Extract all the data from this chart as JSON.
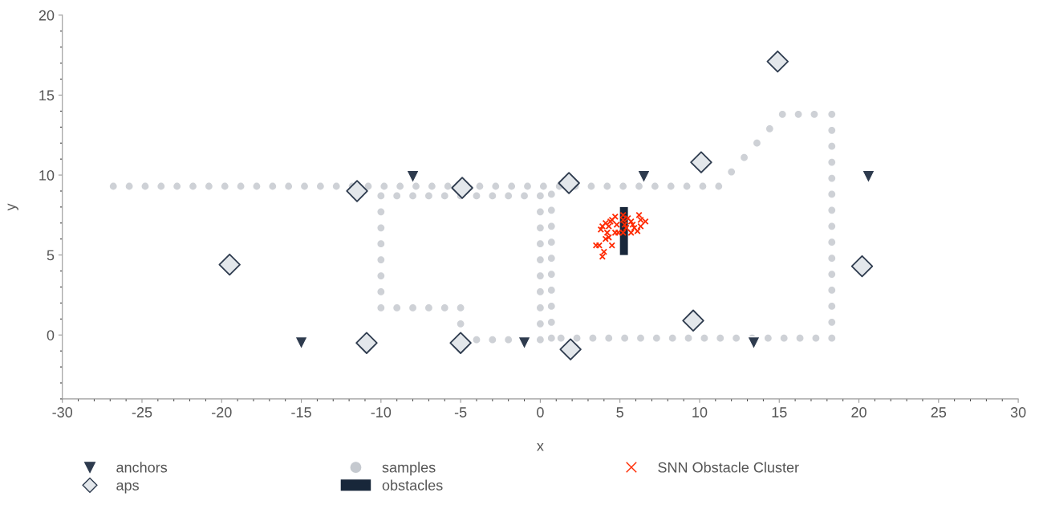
{
  "chart_data": {
    "type": "scatter",
    "xlabel": "x",
    "ylabel": "y",
    "xlim": [
      -30,
      30
    ],
    "xticks": [
      -30,
      -25,
      -20,
      -15,
      -10,
      -5,
      0,
      5,
      10,
      15,
      20,
      25,
      30
    ],
    "ylim": [
      -4,
      20
    ],
    "yticks": [
      0,
      5,
      10,
      15,
      20
    ],
    "grid": false,
    "legend": "bottom",
    "series": [
      {
        "name": "anchors",
        "marker": "triangle",
        "color": "#2e3b4e",
        "x": [
          -8.0,
          6.5,
          20.6,
          -15.0,
          -1.0,
          13.4
        ],
        "values": [
          9.9,
          9.9,
          9.9,
          -0.5,
          -0.5,
          -0.5
        ]
      },
      {
        "name": "aps",
        "marker": "diamond",
        "color": "#e3e7eb",
        "x": [
          -19.5,
          -11.5,
          -10.9,
          -4.9,
          -5.0,
          1.8,
          1.9,
          10.1,
          9.6,
          14.9,
          20.2
        ],
        "values": [
          4.4,
          9.0,
          -0.5,
          9.2,
          -0.5,
          9.5,
          -0.9,
          10.8,
          0.9,
          17.1,
          4.3
        ]
      },
      {
        "name": "samples",
        "marker": "circle",
        "color": "#c5c9cf",
        "x": [
          -26.8,
          -25.8,
          -24.8,
          -23.8,
          -22.8,
          -21.8,
          -20.8,
          -19.8,
          -18.8,
          -17.8,
          -16.8,
          -15.8,
          -14.8,
          -13.8,
          -12.8,
          -11.8,
          -10.8,
          -9.8,
          -8.8,
          -7.8,
          -6.8,
          -5.8,
          -3.8,
          -2.8,
          -1.8,
          -0.8,
          0.2,
          1.2,
          2.2,
          3.2,
          4.2,
          5.2,
          6.2,
          7.2,
          8.2,
          9.2,
          10.2,
          11.2,
          12.0,
          12.8,
          13.6,
          14.4,
          15.2,
          16.2,
          17.2,
          18.3,
          18.3,
          18.3,
          18.3,
          18.3,
          18.3,
          18.3,
          18.3,
          18.3,
          18.3,
          18.3,
          18.3,
          18.3,
          18.3,
          18.3,
          17.3,
          16.3,
          15.3,
          14.3,
          13.3,
          12.3,
          11.3,
          10.3,
          9.3,
          8.3,
          7.3,
          6.3,
          5.3,
          4.3,
          3.3,
          2.3,
          1.3,
          0.7,
          0.7,
          0.7,
          0.7,
          0.7,
          0.7,
          0.7,
          0.7,
          0.7,
          0.7,
          0.0,
          -1.0,
          -2.0,
          -3.0,
          -4.0,
          -5.0,
          -6.0,
          -7.0,
          -8.0,
          -9.0,
          -10.0,
          -10.0,
          -10.0,
          -10.0,
          -10.0,
          -10.0,
          -10.0,
          -10.0,
          -9.0,
          -8.0,
          -7.0,
          -6.0,
          -5.0,
          -5.0,
          -4.0,
          -3.0,
          -2.0,
          0.0,
          0.0,
          0.0,
          0.0,
          0.0,
          0.0,
          0.0,
          0.0,
          0.0
        ],
        "values": [
          9.3,
          9.3,
          9.3,
          9.3,
          9.3,
          9.3,
          9.3,
          9.3,
          9.3,
          9.3,
          9.3,
          9.3,
          9.3,
          9.3,
          9.3,
          9.3,
          9.3,
          9.3,
          9.3,
          9.3,
          9.3,
          9.3,
          9.3,
          9.3,
          9.3,
          9.3,
          9.3,
          9.3,
          9.3,
          9.3,
          9.3,
          9.3,
          9.3,
          9.3,
          9.3,
          9.3,
          9.3,
          9.3,
          10.2,
          11.1,
          12.0,
          12.9,
          13.8,
          13.8,
          13.8,
          13.8,
          12.8,
          11.8,
          10.8,
          9.8,
          8.8,
          7.8,
          6.8,
          5.8,
          4.8,
          3.8,
          2.8,
          1.8,
          0.8,
          -0.2,
          -0.2,
          -0.2,
          -0.2,
          -0.2,
          -0.2,
          -0.2,
          -0.2,
          -0.2,
          -0.2,
          -0.2,
          -0.2,
          -0.2,
          -0.2,
          -0.2,
          -0.2,
          -0.2,
          -0.2,
          -0.2,
          0.8,
          1.8,
          2.8,
          3.8,
          4.8,
          5.8,
          6.8,
          7.8,
          8.8,
          8.7,
          8.7,
          8.7,
          8.7,
          8.7,
          8.7,
          8.7,
          8.7,
          8.7,
          8.7,
          8.7,
          7.7,
          6.7,
          5.7,
          4.7,
          3.7,
          2.7,
          1.7,
          1.7,
          1.7,
          1.7,
          1.7,
          1.7,
          0.7,
          -0.3,
          -0.3,
          -0.3,
          -0.3,
          0.7,
          1.7,
          2.7,
          3.7,
          4.7,
          5.7,
          6.7,
          7.7
        ]
      },
      {
        "name": "obstacles",
        "type": "bar",
        "color": "#18273a",
        "x": [
          5.25
        ],
        "base": [
          5.0
        ],
        "values": [
          3.0
        ]
      },
      {
        "name": "SNN Obstacle Cluster",
        "marker": "cross",
        "color": "#ff2a00",
        "x": [
          3.9,
          4.0,
          3.5,
          3.7,
          4.5,
          4.1,
          4.3,
          3.8,
          3.9,
          4.1,
          4.4,
          4.7,
          4.5,
          4.7,
          4.9,
          5.2,
          5.2,
          5.3,
          5.2,
          5.5,
          5.7,
          5.9,
          6.2,
          6.3,
          6.6,
          6.1,
          5.7,
          5.8,
          5.4,
          4.8,
          4.3,
          4.2,
          6.3
        ],
        "values": [
          4.9,
          5.2,
          5.6,
          5.6,
          5.6,
          6.0,
          6.1,
          6.6,
          6.8,
          7.0,
          7.1,
          7.4,
          7.2,
          6.4,
          6.4,
          7.5,
          7.2,
          6.9,
          6.4,
          7.3,
          7.1,
          6.7,
          7.5,
          7.2,
          7.1,
          6.5,
          6.4,
          6.9,
          6.7,
          6.9,
          6.8,
          6.4,
          6.8
        ]
      }
    ]
  }
}
